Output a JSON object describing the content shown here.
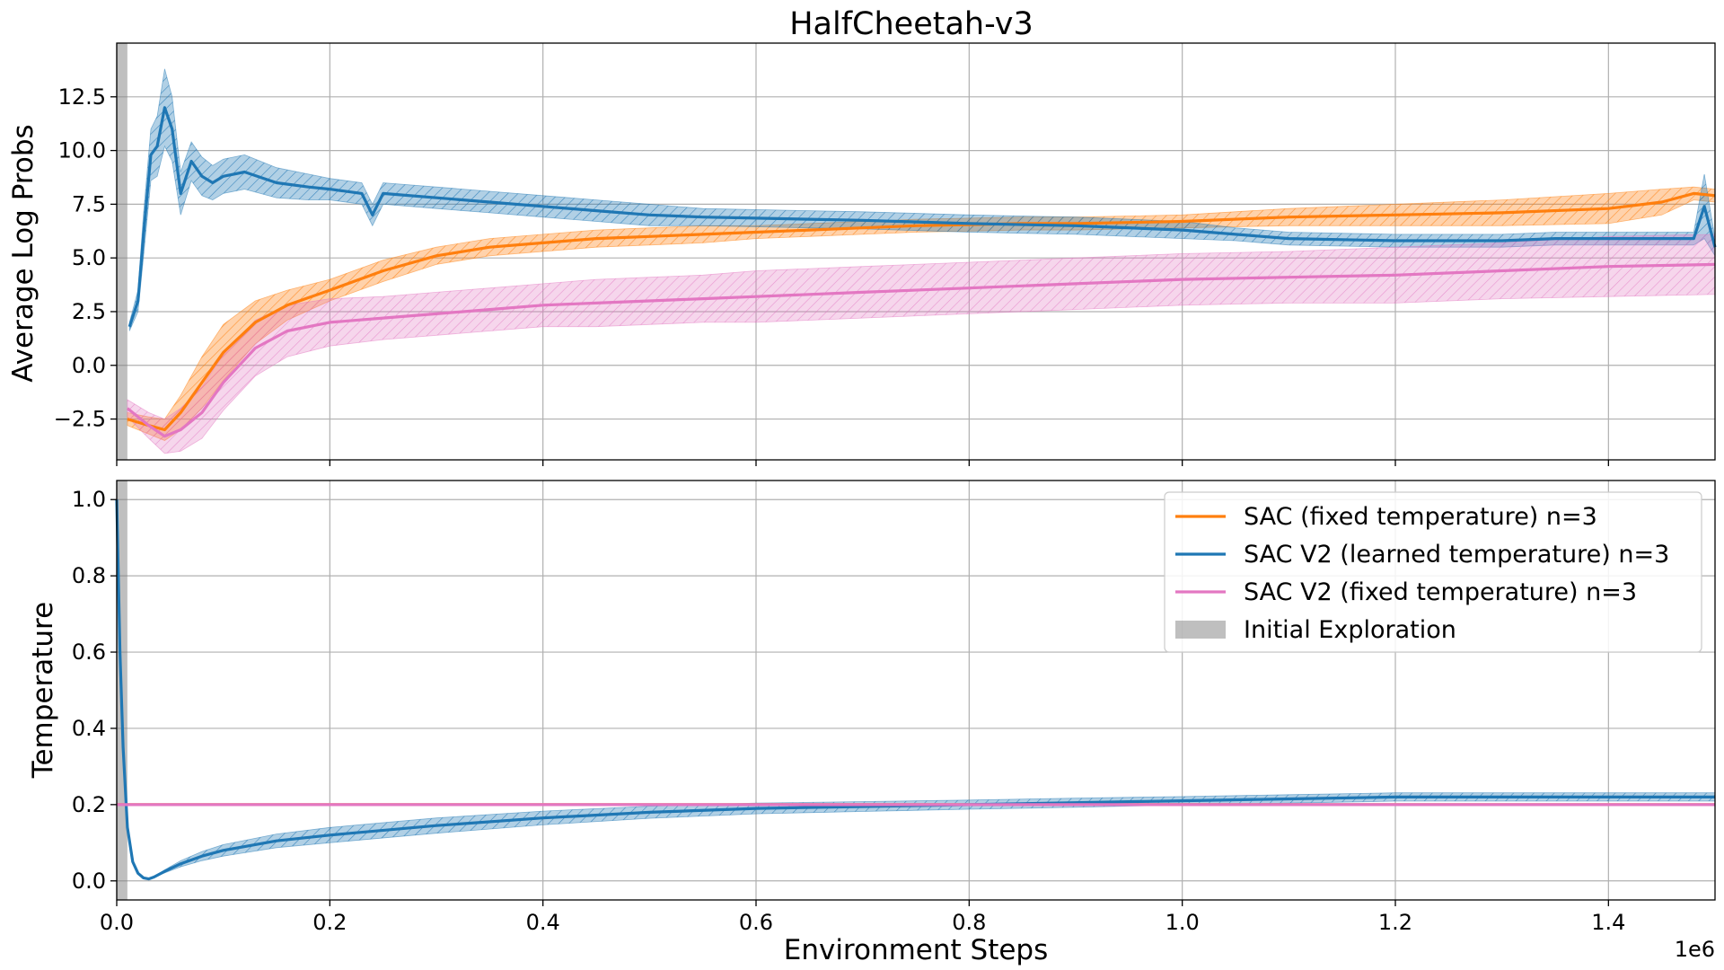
{
  "colors": {
    "sac_fixed": "#ff7f0e",
    "sac_v2_learned": "#1f77b4",
    "sac_v2_fixed": "#e377c2",
    "initial_exploration": "#808080",
    "grid": "#b0b0b0"
  },
  "chart_data": [
    {
      "type": "line",
      "title": "HalfCheetah-v3",
      "ylabel": "Average Log Probs",
      "xlabel": "",
      "xlim": [
        0,
        1500000
      ],
      "ylim": [
        -4.4,
        15
      ],
      "xticks": [
        0,
        200000,
        400000,
        600000,
        800000,
        1000000,
        1200000,
        1400000
      ],
      "yticks": [
        -2.5,
        0.0,
        2.5,
        5.0,
        7.5,
        10.0,
        12.5
      ],
      "ytick_labels": [
        "−2.5",
        "0.0",
        "2.5",
        "5.0",
        "7.5",
        "10.0",
        "12.5"
      ],
      "grid": true,
      "shaded_region": {
        "name": "Initial Exploration",
        "x0": 0,
        "x1": 10000
      },
      "series": [
        {
          "name": "SAC (fixed temperature) n=3",
          "color_key": "sac_fixed",
          "x": [
            10000,
            30000,
            45000,
            60000,
            80000,
            100000,
            130000,
            160000,
            200000,
            250000,
            300000,
            350000,
            400000,
            450000,
            500000,
            550000,
            600000,
            650000,
            700000,
            750000,
            800000,
            850000,
            900000,
            950000,
            1000000,
            1100000,
            1200000,
            1300000,
            1400000,
            1450000,
            1480000,
            1500000
          ],
          "y": [
            -2.5,
            -2.8,
            -3.0,
            -2.2,
            -0.8,
            0.6,
            2.0,
            2.8,
            3.5,
            4.4,
            5.1,
            5.5,
            5.7,
            5.9,
            6.0,
            6.1,
            6.2,
            6.3,
            6.4,
            6.5,
            6.55,
            6.6,
            6.6,
            6.65,
            6.7,
            6.9,
            7.0,
            7.1,
            7.3,
            7.6,
            8.0,
            7.9
          ],
          "band": [
            0.3,
            0.4,
            0.5,
            0.8,
            1.2,
            1.3,
            1.0,
            0.7,
            0.5,
            0.5,
            0.4,
            0.4,
            0.4,
            0.4,
            0.4,
            0.4,
            0.3,
            0.3,
            0.3,
            0.3,
            0.3,
            0.3,
            0.3,
            0.3,
            0.3,
            0.4,
            0.5,
            0.6,
            0.7,
            0.6,
            0.3,
            0.3
          ]
        },
        {
          "name": "SAC V2 (learned temperature) n=3",
          "color_key": "sac_v2_learned",
          "x": [
            12000,
            20000,
            25000,
            32000,
            38000,
            45000,
            52000,
            60000,
            70000,
            80000,
            90000,
            100000,
            120000,
            150000,
            180000,
            200000,
            230000,
            240000,
            250000,
            300000,
            350000,
            400000,
            450000,
            500000,
            550000,
            600000,
            650000,
            700000,
            800000,
            900000,
            1000000,
            1050000,
            1100000,
            1200000,
            1300000,
            1350000,
            1400000,
            1450000,
            1480000,
            1490000,
            1500000
          ],
          "y": [
            1.8,
            3.0,
            6.0,
            9.8,
            10.2,
            12.0,
            11.0,
            8.0,
            9.5,
            8.8,
            8.5,
            8.8,
            9.0,
            8.5,
            8.3,
            8.2,
            8.0,
            7.0,
            8.0,
            7.8,
            7.6,
            7.4,
            7.2,
            7.0,
            6.9,
            6.85,
            6.8,
            6.75,
            6.6,
            6.5,
            6.3,
            6.1,
            5.9,
            5.8,
            5.8,
            5.9,
            5.9,
            5.9,
            5.9,
            7.4,
            5.5
          ],
          "band": [
            0.2,
            0.5,
            1.0,
            1.2,
            1.4,
            1.8,
            1.5,
            1.0,
            0.9,
            0.9,
            0.8,
            0.8,
            0.8,
            0.7,
            0.6,
            0.5,
            0.5,
            0.5,
            0.5,
            0.5,
            0.5,
            0.5,
            0.5,
            0.5,
            0.4,
            0.4,
            0.4,
            0.4,
            0.4,
            0.4,
            0.4,
            0.3,
            0.3,
            0.3,
            0.3,
            0.3,
            0.3,
            0.3,
            0.3,
            1.5,
            0.4
          ]
        },
        {
          "name": "SAC V2 (fixed temperature) n=3",
          "color_key": "sac_v2_fixed",
          "x": [
            10000,
            30000,
            45000,
            60000,
            80000,
            100000,
            130000,
            160000,
            200000,
            250000,
            300000,
            350000,
            400000,
            450000,
            500000,
            550000,
            600000,
            700000,
            800000,
            900000,
            1000000,
            1100000,
            1200000,
            1300000,
            1400000,
            1500000
          ],
          "y": [
            -2.0,
            -2.8,
            -3.3,
            -3.0,
            -2.2,
            -0.8,
            0.8,
            1.6,
            2.0,
            2.2,
            2.4,
            2.6,
            2.8,
            2.9,
            3.0,
            3.1,
            3.2,
            3.4,
            3.6,
            3.8,
            4.0,
            4.1,
            4.2,
            4.4,
            4.6,
            4.7
          ],
          "band": [
            0.4,
            0.6,
            0.8,
            1.0,
            1.2,
            1.3,
            1.3,
            1.2,
            1.1,
            1.0,
            1.0,
            1.0,
            1.0,
            1.1,
            1.1,
            1.1,
            1.2,
            1.2,
            1.2,
            1.2,
            1.2,
            1.2,
            1.3,
            1.3,
            1.4,
            1.4
          ]
        }
      ]
    },
    {
      "type": "line",
      "title": "",
      "ylabel": "Temperature",
      "xlabel": "Environment Steps",
      "x_offset_label": "1e6",
      "xlim": [
        0,
        1500000
      ],
      "ylim": [
        -0.05,
        1.05
      ],
      "xticks": [
        0,
        200000,
        400000,
        600000,
        800000,
        1000000,
        1200000,
        1400000
      ],
      "xtick_labels": [
        "0.0",
        "0.2",
        "0.4",
        "0.6",
        "0.8",
        "1.0",
        "1.2",
        "1.4"
      ],
      "yticks": [
        0.0,
        0.2,
        0.4,
        0.6,
        0.8,
        1.0
      ],
      "ytick_labels": [
        "0.0",
        "0.2",
        "0.4",
        "0.6",
        "0.8",
        "1.0"
      ],
      "grid": true,
      "legend_position": "top-right",
      "shaded_region": {
        "name": "Initial Exploration",
        "x0": 0,
        "x1": 10000
      },
      "series": [
        {
          "name": "SAC (fixed temperature) n=3",
          "color_key": "sac_fixed",
          "x": [
            0,
            1500000
          ],
          "y": [
            0.2,
            0.2
          ],
          "band": [
            0,
            0
          ]
        },
        {
          "name": "SAC V2 (learned temperature) n=3",
          "color_key": "sac_v2_learned",
          "x": [
            0,
            3000,
            6000,
            10000,
            15000,
            20000,
            25000,
            30000,
            35000,
            45000,
            60000,
            80000,
            100000,
            150000,
            200000,
            300000,
            400000,
            500000,
            600000,
            700000,
            800000,
            900000,
            1000000,
            1100000,
            1200000,
            1300000,
            1400000,
            1500000
          ],
          "y": [
            1.0,
            0.6,
            0.35,
            0.14,
            0.05,
            0.02,
            0.008,
            0.005,
            0.01,
            0.025,
            0.045,
            0.065,
            0.08,
            0.105,
            0.12,
            0.145,
            0.165,
            0.18,
            0.19,
            0.195,
            0.2,
            0.205,
            0.21,
            0.215,
            0.22,
            0.22,
            0.22,
            0.22
          ],
          "band": [
            0,
            0,
            0,
            0,
            0,
            0,
            0,
            0,
            0,
            0.004,
            0.008,
            0.012,
            0.015,
            0.018,
            0.02,
            0.02,
            0.018,
            0.016,
            0.014,
            0.013,
            0.012,
            0.012,
            0.011,
            0.011,
            0.011,
            0.011,
            0.011,
            0.011
          ]
        },
        {
          "name": "SAC V2 (fixed temperature) n=3",
          "color_key": "sac_v2_fixed",
          "x": [
            0,
            1500000
          ],
          "y": [
            0.2,
            0.2
          ],
          "band": [
            0,
            0
          ]
        }
      ],
      "legend": [
        {
          "label": "SAC (fixed temperature) n=3",
          "kind": "line",
          "color_key": "sac_fixed"
        },
        {
          "label": "SAC V2 (learned temperature) n=3",
          "kind": "line",
          "color_key": "sac_v2_learned"
        },
        {
          "label": "SAC V2 (fixed temperature) n=3",
          "kind": "line",
          "color_key": "sac_v2_fixed"
        },
        {
          "label": "Initial Exploration",
          "kind": "patch",
          "color_key": "initial_exploration"
        }
      ]
    }
  ]
}
